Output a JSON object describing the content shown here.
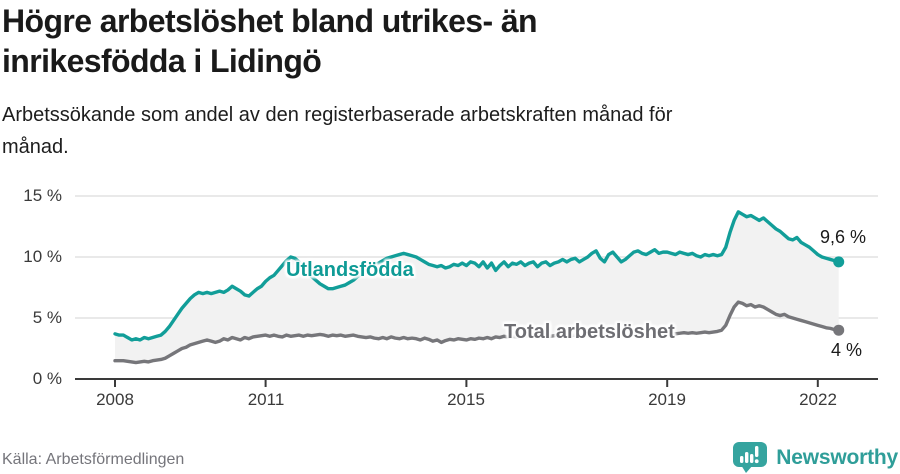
{
  "header": {
    "title": "Högre arbetslöshet bland utrikes- än\ninrikesfödda i Lidingö",
    "subtitle": "Arbetssökande som andel av den registerbaserade arbetskraften månad för\nmånad."
  },
  "footer": {
    "source": "Källa: Arbetsförmedlingen",
    "brand": "Newsworthy",
    "brand_color": "#2f9e99"
  },
  "chart_data": {
    "type": "line",
    "x_start_year": 2008,
    "x_step_months": 1,
    "x_end": "2022-06",
    "ylim": [
      0,
      15
    ],
    "grid": true,
    "band_fill_between_series": true,
    "band_color": "#f2f2f2",
    "axis_color": "#3a3a3a",
    "grid_color": "#dcdcdc",
    "ytick_values": [
      0,
      5,
      10,
      15
    ],
    "ytick_labels": [
      "0 %",
      "5 %",
      "10 %",
      "15 %"
    ],
    "xtick_values": [
      2008,
      2011,
      2015,
      2019,
      2022
    ],
    "xtick_labels": [
      "2008",
      "2011",
      "2015",
      "2019",
      "2022"
    ],
    "series": [
      {
        "name": "Utlandsfödda",
        "color": "#129e99",
        "end_label": "9,6 %",
        "values": [
          3.7,
          3.6,
          3.6,
          3.4,
          3.2,
          3.3,
          3.2,
          3.4,
          3.3,
          3.4,
          3.5,
          3.6,
          3.9,
          4.3,
          4.8,
          5.3,
          5.8,
          6.2,
          6.6,
          6.9,
          7.1,
          7.0,
          7.1,
          7.0,
          7.1,
          7.2,
          7.1,
          7.3,
          7.6,
          7.4,
          7.2,
          6.9,
          6.8,
          7.1,
          7.4,
          7.6,
          8.0,
          8.3,
          8.5,
          8.9,
          9.3,
          9.7,
          10.0,
          9.9,
          9.6,
          9.2,
          8.8,
          8.4,
          8.1,
          7.8,
          7.6,
          7.4,
          7.4,
          7.5,
          7.6,
          7.7,
          7.9,
          8.1,
          8.4,
          8.6,
          8.8,
          9.1,
          9.3,
          9.5,
          9.7,
          9.9,
          10.0,
          10.1,
          10.2,
          10.3,
          10.2,
          10.1,
          10.0,
          9.8,
          9.6,
          9.4,
          9.3,
          9.2,
          9.3,
          9.1,
          9.2,
          9.4,
          9.3,
          9.5,
          9.3,
          9.6,
          9.5,
          9.2,
          9.6,
          9.1,
          9.5,
          8.9,
          9.3,
          9.6,
          9.2,
          9.5,
          9.4,
          9.6,
          9.3,
          9.5,
          9.6,
          9.2,
          9.5,
          9.6,
          9.3,
          9.5,
          9.6,
          9.8,
          9.6,
          9.8,
          9.9,
          9.6,
          9.8,
          10.0,
          10.3,
          10.5,
          9.9,
          9.6,
          10.2,
          10.4,
          10.0,
          9.6,
          9.8,
          10.1,
          10.4,
          10.5,
          10.3,
          10.2,
          10.4,
          10.6,
          10.3,
          10.4,
          10.4,
          10.3,
          10.2,
          10.4,
          10.3,
          10.2,
          10.3,
          10.1,
          10.0,
          10.2,
          10.1,
          10.2,
          10.1,
          10.2,
          10.8,
          12.0,
          13.0,
          13.7,
          13.5,
          13.3,
          13.4,
          13.2,
          13.0,
          13.2,
          12.9,
          12.6,
          12.3,
          12.1,
          11.8,
          11.5,
          11.4,
          11.6,
          11.2,
          11.0,
          10.8,
          10.5,
          10.2,
          10.0,
          9.9,
          9.8,
          9.7,
          9.6
        ]
      },
      {
        "name": "Total arbetslöshet",
        "color": "#76767a",
        "end_label": "4 %",
        "values": [
          1.5,
          1.5,
          1.5,
          1.45,
          1.4,
          1.35,
          1.4,
          1.45,
          1.4,
          1.5,
          1.55,
          1.6,
          1.7,
          1.9,
          2.1,
          2.3,
          2.5,
          2.6,
          2.8,
          2.9,
          3.0,
          3.1,
          3.2,
          3.1,
          3.0,
          3.1,
          3.3,
          3.2,
          3.4,
          3.3,
          3.2,
          3.4,
          3.3,
          3.45,
          3.5,
          3.55,
          3.6,
          3.5,
          3.6,
          3.5,
          3.45,
          3.6,
          3.5,
          3.55,
          3.6,
          3.5,
          3.6,
          3.55,
          3.6,
          3.65,
          3.6,
          3.5,
          3.6,
          3.55,
          3.6,
          3.5,
          3.55,
          3.6,
          3.5,
          3.45,
          3.4,
          3.45,
          3.35,
          3.3,
          3.4,
          3.3,
          3.45,
          3.35,
          3.3,
          3.4,
          3.3,
          3.35,
          3.3,
          3.2,
          3.35,
          3.25,
          3.1,
          3.2,
          3.0,
          3.15,
          3.25,
          3.2,
          3.3,
          3.25,
          3.2,
          3.3,
          3.25,
          3.35,
          3.3,
          3.4,
          3.3,
          3.45,
          3.4,
          3.5,
          3.45,
          3.5,
          3.45,
          3.5,
          3.55,
          3.5,
          3.6,
          3.5,
          3.55,
          3.6,
          3.5,
          3.55,
          3.6,
          3.55,
          3.6,
          3.55,
          3.6,
          3.65,
          3.6,
          3.55,
          3.6,
          3.65,
          3.6,
          3.65,
          3.7,
          3.6,
          3.65,
          3.6,
          3.65,
          3.7,
          3.65,
          3.6,
          3.65,
          3.7,
          3.65,
          3.7,
          3.75,
          3.7,
          3.7,
          3.75,
          3.7,
          3.75,
          3.8,
          3.75,
          3.8,
          3.75,
          3.8,
          3.85,
          3.8,
          3.85,
          3.9,
          4.0,
          4.4,
          5.2,
          5.9,
          6.3,
          6.2,
          6.0,
          6.1,
          5.9,
          6.0,
          5.9,
          5.7,
          5.5,
          5.3,
          5.2,
          5.3,
          5.1,
          5.0,
          4.9,
          4.8,
          4.7,
          4.6,
          4.5,
          4.4,
          4.3,
          4.2,
          4.15,
          4.05,
          4.0
        ]
      }
    ]
  }
}
